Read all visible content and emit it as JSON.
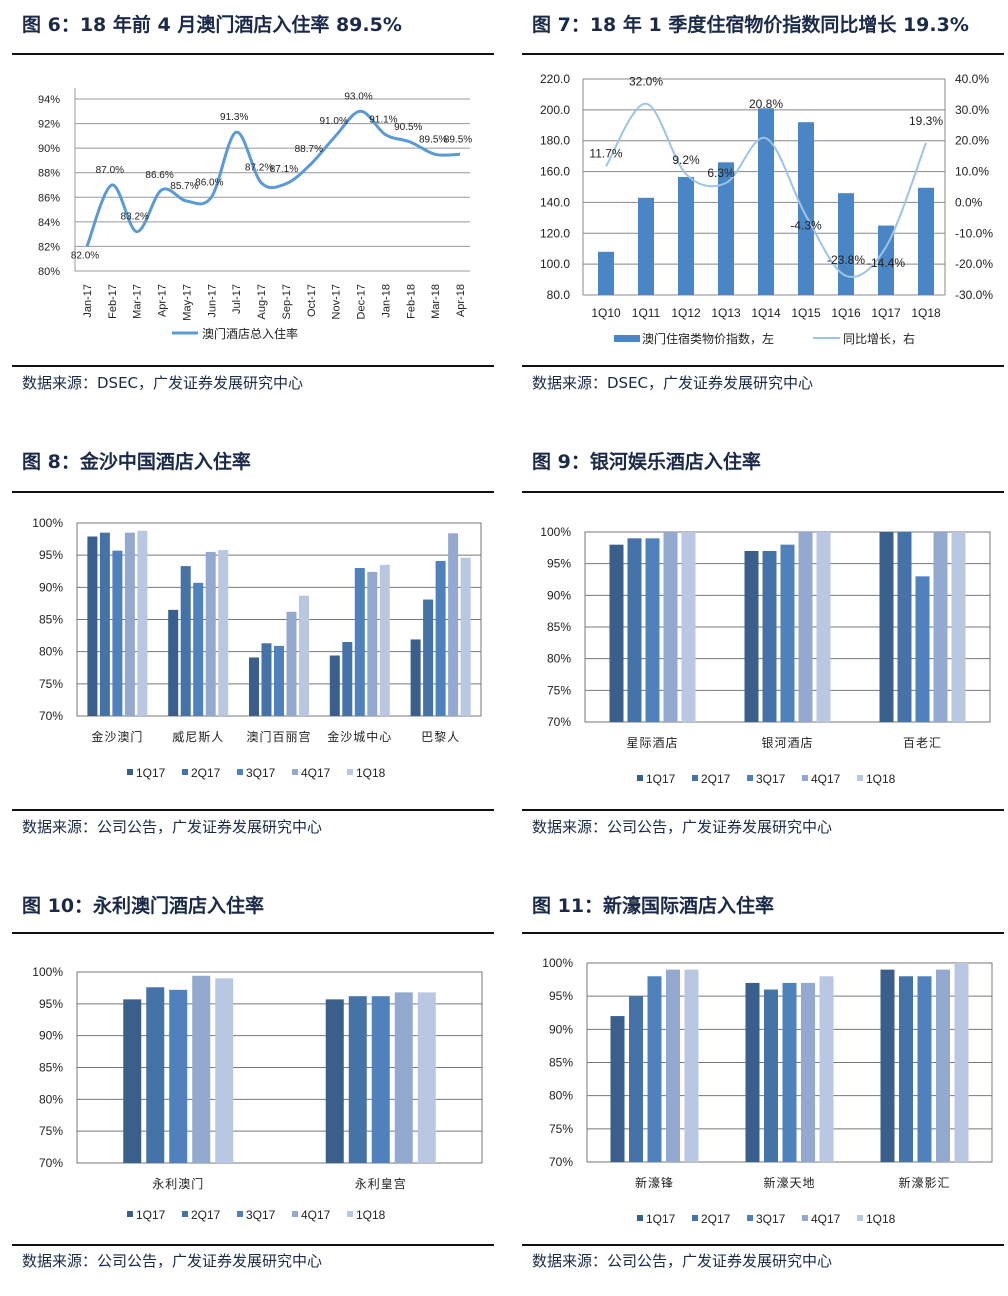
{
  "figures": [
    {
      "title": "图 6：18 年前 4 月澳门酒店入住率 89.5%",
      "source": "数据来源：DSEC，广发证券发展研究中心"
    },
    {
      "title": "图 7：18 年 1 季度住宿物价指数同比增长 19.3%",
      "source": "数据来源：DSEC，广发证券发展研究中心"
    },
    {
      "title": "图 8：金沙中国酒店入住率",
      "source": "数据来源：公司公告，广发证券发展研究中心"
    },
    {
      "title": "图 9：银河娱乐酒店入住率",
      "source": "数据来源：公司公告，广发证券发展研究中心"
    },
    {
      "title": "图 10：永利澳门酒店入住率",
      "source": "数据来源：公司公告，广发证券发展研究中心"
    },
    {
      "title": "图 11：新濠国际酒店入住率",
      "source": "数据来源：公司公告，广发证券发展研究中心"
    }
  ],
  "colors": {
    "line": "#5b9bd5",
    "line_light": "#9dc3e6",
    "bar_single": "#4a86c5",
    "series": [
      "#3b5f8c",
      "#4572a7",
      "#4f81bd",
      "#93a9cf",
      "#b9c7e2"
    ]
  },
  "chart_data": [
    {
      "type": "line",
      "categories": [
        "Jan-17",
        "Feb-17",
        "Mar-17",
        "Apr-17",
        "May-17",
        "Jun-17",
        "Jul-17",
        "Aug-17",
        "Sep-17",
        "Oct-17",
        "Nov-17",
        "Dec-17",
        "Jan-18",
        "Feb-18",
        "Mar-18",
        "Apr-18"
      ],
      "series": [
        {
          "name": "澳门酒店总入住率",
          "values": [
            82.0,
            87.0,
            83.2,
            86.6,
            85.7,
            86.0,
            91.3,
            87.2,
            87.1,
            88.7,
            91.0,
            93.0,
            91.1,
            90.5,
            89.5,
            89.5
          ]
        }
      ],
      "data_labels": [
        "82.0%",
        "87.0%",
        "83.2%",
        "86.6%",
        "85.7%",
        "86.0%",
        "91.3%",
        "87.2%",
        "87.1%",
        "88.7%",
        "91.0%",
        "93.0%",
        "91.1%",
        "90.5%",
        "89.5%",
        "89.5%"
      ],
      "ylim": [
        80,
        94
      ],
      "yticks": [
        "80%",
        "82%",
        "84%",
        "86%",
        "88%",
        "90%",
        "92%",
        "94%"
      ],
      "grid": true,
      "legend": "bottom"
    },
    {
      "type": "bar+line",
      "categories": [
        "1Q10",
        "1Q11",
        "1Q12",
        "1Q13",
        "1Q14",
        "1Q15",
        "1Q16",
        "1Q17",
        "1Q18"
      ],
      "series": [
        {
          "name": "澳门住宿类物价指数，左",
          "axis": "left",
          "values": [
            108,
            143,
            156.5,
            166,
            201,
            192,
            146,
            125,
            149.5
          ]
        },
        {
          "name": "同比增长，右",
          "axis": "right",
          "values": [
            11.7,
            32.0,
            9.2,
            6.3,
            20.8,
            -4.3,
            -23.8,
            -14.4,
            19.3
          ]
        }
      ],
      "data_labels": [
        "11.7%",
        "32.0%",
        "9.2%",
        "6.3%",
        "20.8%",
        "-4.3%",
        "-23.8%",
        "-14.4%",
        "19.3%"
      ],
      "ylim_left": [
        80,
        220
      ],
      "ylim_right": [
        -30,
        40
      ],
      "yticks_left": [
        "80.0",
        "100.0",
        "120.0",
        "140.0",
        "160.0",
        "180.0",
        "200.0",
        "220.0"
      ],
      "yticks_right": [
        "-30.0%",
        "-20.0%",
        "-10.0%",
        "0.0%",
        "10.0%",
        "20.0%",
        "30.0%",
        "40.0%"
      ],
      "grid": true,
      "legend": "bottom"
    },
    {
      "type": "bar",
      "categories": [
        "金沙澳门",
        "威尼斯人",
        "澳门百丽宫",
        "金沙城中心",
        "巴黎人"
      ],
      "series": [
        {
          "name": "1Q17",
          "values": [
            97.9,
            86.5,
            79.1,
            79.4,
            81.9
          ]
        },
        {
          "name": "2Q17",
          "values": [
            98.5,
            93.3,
            81.3,
            81.5,
            88.1
          ]
        },
        {
          "name": "3Q17",
          "values": [
            95.7,
            90.7,
            80.9,
            93.0,
            94.1
          ]
        },
        {
          "name": "4Q17",
          "values": [
            98.5,
            95.5,
            86.2,
            92.4,
            98.4
          ]
        },
        {
          "name": "1Q18",
          "values": [
            98.8,
            95.8,
            88.7,
            93.5,
            94.6
          ]
        }
      ],
      "ylim": [
        70,
        100
      ],
      "yticks": [
        "70%",
        "75%",
        "80%",
        "85%",
        "90%",
        "95%",
        "100%"
      ],
      "grid": true,
      "legend": "bottom"
    },
    {
      "type": "bar",
      "categories": [
        "星际酒店",
        "银河酒店",
        "百老汇"
      ],
      "series": [
        {
          "name": "1Q17",
          "values": [
            98,
            97,
            100
          ]
        },
        {
          "name": "2Q17",
          "values": [
            99,
            97,
            100
          ]
        },
        {
          "name": "3Q17",
          "values": [
            99,
            98,
            93
          ]
        },
        {
          "name": "4Q17",
          "values": [
            100,
            100,
            100
          ]
        },
        {
          "name": "1Q18",
          "values": [
            100,
            100,
            100
          ]
        }
      ],
      "ylim": [
        70,
        100
      ],
      "yticks": [
        "70%",
        "75%",
        "80%",
        "85%",
        "90%",
        "95%",
        "100%"
      ],
      "grid": true,
      "legend": "bottom"
    },
    {
      "type": "bar",
      "categories": [
        "永利澳门",
        "永利皇宫"
      ],
      "series": [
        {
          "name": "1Q17",
          "values": [
            95.7,
            95.7
          ]
        },
        {
          "name": "2Q17",
          "values": [
            97.6,
            96.2
          ]
        },
        {
          "name": "3Q17",
          "values": [
            97.2,
            96.2
          ]
        },
        {
          "name": "4Q17",
          "values": [
            99.4,
            96.8
          ]
        },
        {
          "name": "1Q18",
          "values": [
            99.0,
            96.8
          ]
        }
      ],
      "ylim": [
        70,
        100
      ],
      "yticks": [
        "70%",
        "75%",
        "80%",
        "85%",
        "90%",
        "95%",
        "100%"
      ],
      "grid": true,
      "legend": "bottom"
    },
    {
      "type": "bar",
      "categories": [
        "新濠锋",
        "新濠天地",
        "新濠影汇"
      ],
      "series": [
        {
          "name": "1Q17",
          "values": [
            92,
            97,
            99
          ]
        },
        {
          "name": "2Q17",
          "values": [
            95,
            96,
            98
          ]
        },
        {
          "name": "3Q17",
          "values": [
            98,
            97,
            98
          ]
        },
        {
          "name": "4Q17",
          "values": [
            99,
            97,
            99
          ]
        },
        {
          "name": "1Q18",
          "values": [
            99,
            98,
            100
          ]
        }
      ],
      "ylim": [
        70,
        100
      ],
      "yticks": [
        "70%",
        "75%",
        "80%",
        "85%",
        "90%",
        "95%",
        "100%"
      ],
      "grid": true,
      "legend": "bottom"
    }
  ]
}
